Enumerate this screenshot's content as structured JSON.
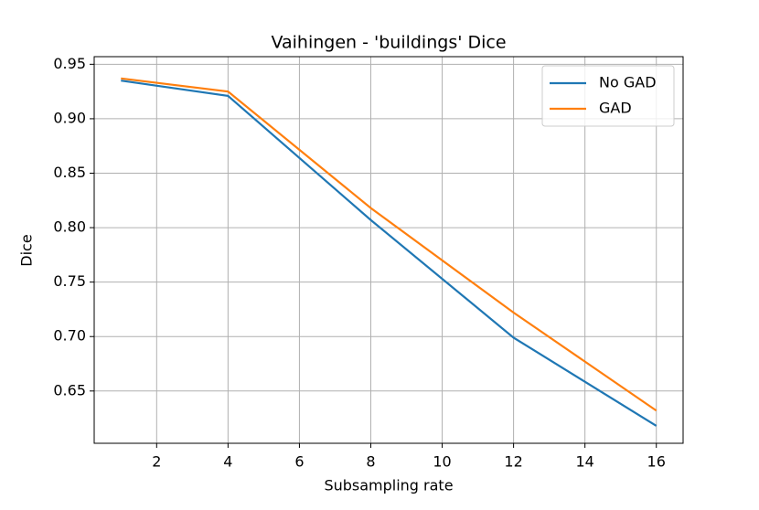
{
  "chart_data": {
    "type": "line",
    "title": "Vaihingen - 'buildings' Dice",
    "x_label": "Subsampling rate",
    "y_label": "Dice",
    "x": [
      1,
      4,
      8,
      12,
      16
    ],
    "series": [
      {
        "name": "No GAD",
        "color": "#1f77b4",
        "values": [
          0.935,
          0.921,
          0.807,
          0.699,
          0.618
        ]
      },
      {
        "name": "GAD",
        "color": "#ff7f0e",
        "values": [
          0.937,
          0.925,
          0.818,
          0.722,
          0.632
        ]
      }
    ],
    "xlim": [
      0.25,
      16.75
    ],
    "xticks": [
      2,
      4,
      6,
      8,
      10,
      12,
      14,
      16
    ],
    "ylim": [
      0.602,
      0.957
    ],
    "yticks": [
      {
        "value": 0.65,
        "label": "0.65"
      },
      {
        "value": 0.7,
        "label": "0.70"
      },
      {
        "value": 0.75,
        "label": "0.75"
      },
      {
        "value": 0.8,
        "label": "0.80"
      },
      {
        "value": 0.85,
        "label": "0.85"
      },
      {
        "value": 0.9,
        "label": "0.90"
      },
      {
        "value": 0.95,
        "label": "0.95"
      }
    ],
    "grid": true,
    "legend": "upper-right"
  }
}
